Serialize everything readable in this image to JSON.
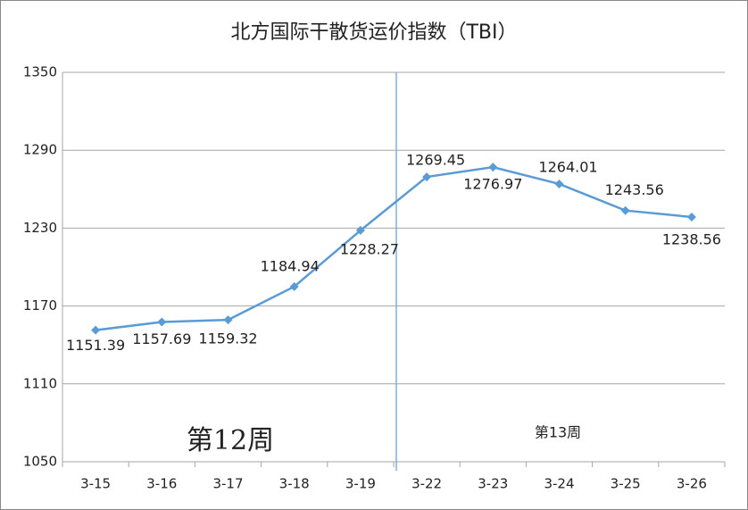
{
  "chart_data": {
    "type": "line",
    "title": "北方国际干散货运价指数（TBI）",
    "categories": [
      "3-15",
      "3-16",
      "3-17",
      "3-18",
      "3-19",
      "3-22",
      "3-23",
      "3-24",
      "3-25",
      "3-26"
    ],
    "series": [
      {
        "name": "TBI",
        "color": "#5b9bd5",
        "values": [
          1151.39,
          1157.69,
          1159.32,
          1184.94,
          1228.27,
          1269.45,
          1276.97,
          1264.01,
          1243.56,
          1238.56
        ]
      }
    ],
    "ylim": [
      1050,
      1350
    ],
    "yticks": [
      1050,
      1110,
      1170,
      1230,
      1290,
      1350
    ],
    "grid": true,
    "annotations": [
      "第12周",
      "第13周"
    ]
  }
}
